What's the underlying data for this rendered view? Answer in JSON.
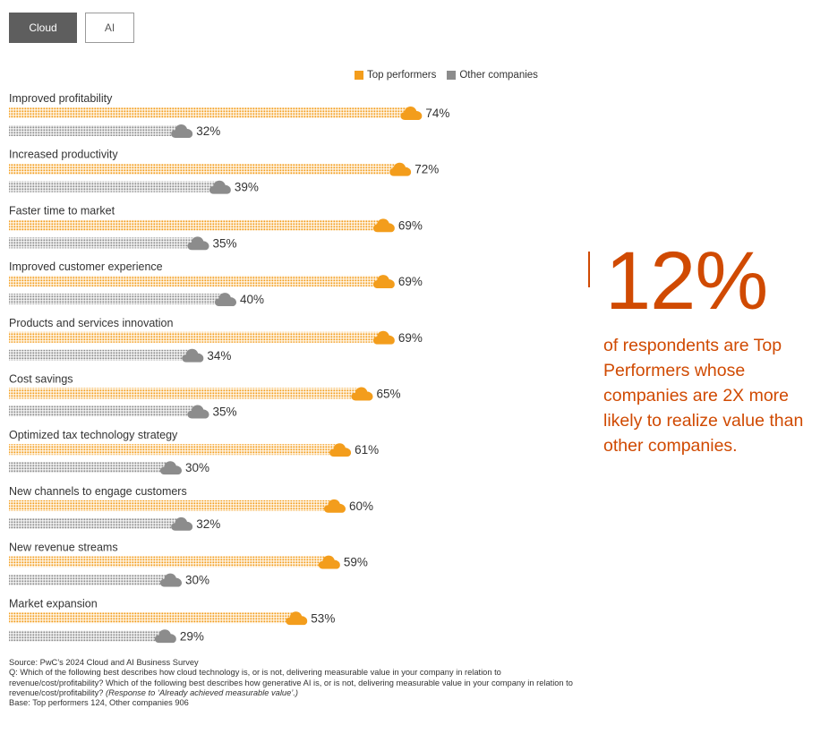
{
  "tabs": {
    "cloud_label": "Cloud",
    "ai_label": "AI"
  },
  "legend": {
    "top_label": "Top performers",
    "other_label": "Other companies"
  },
  "colors": {
    "top": "#f39d1c",
    "other": "#8c8c8c",
    "accent": "#d04a02"
  },
  "chart_data": {
    "type": "bar",
    "orientation": "horizontal",
    "value_suffix": "%",
    "xlim": [
      0,
      100
    ],
    "categories": [
      "Improved profitability",
      "Increased productivity",
      "Faster time to market",
      "Improved customer experience",
      "Products and services innovation",
      "Cost savings",
      "Optimized tax technology strategy",
      "New channels to engage customers",
      "New revenue streams",
      "Market expansion"
    ],
    "series": [
      {
        "name": "Top performers",
        "values": [
          74,
          72,
          69,
          69,
          69,
          65,
          61,
          60,
          59,
          53
        ]
      },
      {
        "name": "Other companies",
        "values": [
          32,
          39,
          35,
          40,
          34,
          35,
          30,
          32,
          30,
          29
        ]
      }
    ],
    "legend_position": "top-right"
  },
  "callout": {
    "stat": "12%",
    "text": "of respondents are Top Performers whose companies are 2X more likely to realize value than other companies."
  },
  "footnote": {
    "source": "Source: PwC’s 2024 Cloud and AI Business Survey",
    "question": "Q: Which of the following best describes how cloud technology is, or is not, delivering measurable value in your company in relation to revenue/cost/profitability? Which of the following best describes how generative AI is, or is not, delivering measurable value in your company in relation to revenue/cost/profitability?",
    "response_note": "(Response to ‘Already achieved measurable value’.)",
    "base": "Base: Top performers 124, Other companies 906"
  }
}
